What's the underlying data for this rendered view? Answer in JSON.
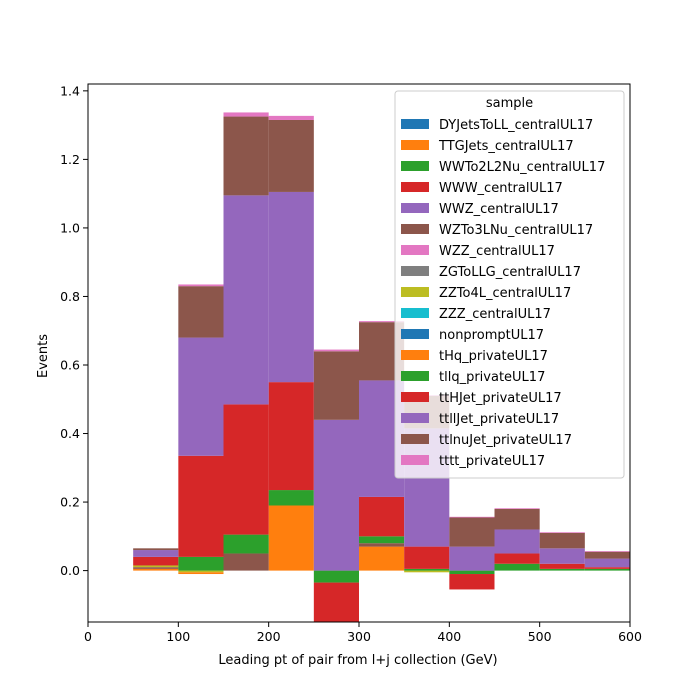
{
  "chart_data": {
    "type": "bar",
    "stacked": true,
    "histogram": true,
    "bin_edges": [
      50,
      100,
      150,
      200,
      250,
      300,
      350,
      400,
      450,
      500,
      550,
      600
    ],
    "xlabel": "Leading pt of pair from l+j collection (GeV)",
    "ylabel": "Events",
    "xlim": [
      0,
      600
    ],
    "ylim": [
      -0.15,
      1.42
    ],
    "x_ticks": [
      0,
      100,
      200,
      300,
      400,
      500,
      600
    ],
    "x_tick_labels": [
      "0",
      "100",
      "200",
      "300",
      "400",
      "500",
      "600"
    ],
    "y_ticks": [
      0.0,
      0.2,
      0.4,
      0.6,
      0.8,
      1.0,
      1.2,
      1.4
    ],
    "y_tick_labels": [
      "0.0",
      "0.2",
      "0.4",
      "0.6",
      "0.8",
      "1.0",
      "1.2",
      "1.4"
    ],
    "grid": false,
    "legend": {
      "title": "sample",
      "placement": "upper right"
    },
    "series": [
      {
        "name": "DYJetsToLL_centralUL17",
        "color": "#1f77b4",
        "values": [
          0,
          0,
          0,
          0,
          0,
          0,
          0,
          0,
          0,
          0,
          0
        ]
      },
      {
        "name": "TTGJets_centralUL17",
        "color": "#ff7f0e",
        "values": [
          0.005,
          0,
          0,
          0.19,
          0,
          0.07,
          0,
          0,
          0,
          0,
          0
        ]
      },
      {
        "name": "WWTo2L2Nu_centralUL17",
        "color": "#2ca02c",
        "values": [
          0,
          0,
          0,
          0,
          0,
          0,
          0,
          0,
          0,
          0,
          0
        ]
      },
      {
        "name": "WWW_centralUL17",
        "color": "#d62728",
        "values": [
          0,
          0,
          0,
          0,
          0,
          0,
          0,
          0,
          0,
          0,
          0
        ]
      },
      {
        "name": "WWZ_centralUL17",
        "color": "#9467bd",
        "values": [
          0,
          0,
          0,
          0,
          0,
          0,
          0,
          0,
          0,
          0,
          0
        ]
      },
      {
        "name": "WZTo3LNu_centralUL17",
        "color": "#8c564b",
        "values": [
          0.005,
          0,
          0.05,
          0,
          0,
          0.01,
          0,
          0,
          0,
          0,
          0
        ]
      },
      {
        "name": "WZZ_centralUL17",
        "color": "#e377c2",
        "values": [
          0,
          0,
          0,
          0,
          0,
          0,
          0,
          0,
          0,
          0,
          0
        ]
      },
      {
        "name": "ZGToLLG_centralUL17",
        "color": "#7f7f7f",
        "values": [
          0,
          0,
          0,
          0,
          0,
          0,
          0,
          0,
          0,
          0,
          0
        ]
      },
      {
        "name": "ZZTo4L_centralUL17",
        "color": "#bcbd22",
        "values": [
          0.005,
          -0.005,
          0,
          0,
          0,
          0,
          -0.005,
          0,
          0,
          0,
          0
        ]
      },
      {
        "name": "ZZZ_centralUL17",
        "color": "#17becf",
        "values": [
          0,
          0,
          0,
          0,
          0,
          0,
          0,
          0,
          0,
          0,
          0
        ]
      },
      {
        "name": "nonpromptUL17",
        "color": "#1f77b4",
        "values": [
          0,
          0,
          0,
          0,
          0,
          0,
          0,
          0,
          0,
          0,
          0
        ]
      },
      {
        "name": "tHq_privateUL17",
        "color": "#ff7f0e",
        "values": [
          0,
          -0.005,
          0,
          0,
          0,
          0,
          0,
          0,
          0,
          0,
          0
        ]
      },
      {
        "name": "tllq_privateUL17",
        "color": "#2ca02c",
        "values": [
          0,
          0.04,
          0.055,
          0.045,
          -0.035,
          0.02,
          0.005,
          -0.01,
          0.02,
          0.005,
          0.005
        ]
      },
      {
        "name": "ttHJet_privateUL17",
        "color": "#d62728",
        "values": [
          0.025,
          0.295,
          0.38,
          0.315,
          -0.12,
          0.115,
          0.065,
          -0.045,
          0.03,
          0.015,
          0.005
        ]
      },
      {
        "name": "ttllJet_privateUL17",
        "color": "#9467bd",
        "values": [
          0.02,
          0.345,
          0.61,
          0.555,
          0.44,
          0.34,
          0.345,
          0.07,
          0.07,
          0.045,
          0.025
        ]
      },
      {
        "name": "ttlnuJet_privateUL17",
        "color": "#8c564b",
        "values": [
          0.005,
          0.15,
          0.23,
          0.21,
          0.2,
          0.17,
          0.095,
          0.085,
          0.06,
          0.045,
          0.02
        ]
      },
      {
        "name": "tttt_privateUL17",
        "color": "#e377c2",
        "values": [
          0,
          0.005,
          0.012,
          0.012,
          0.005,
          0.003,
          0.002,
          0.002,
          0.002,
          0.002,
          0.002
        ]
      }
    ]
  }
}
